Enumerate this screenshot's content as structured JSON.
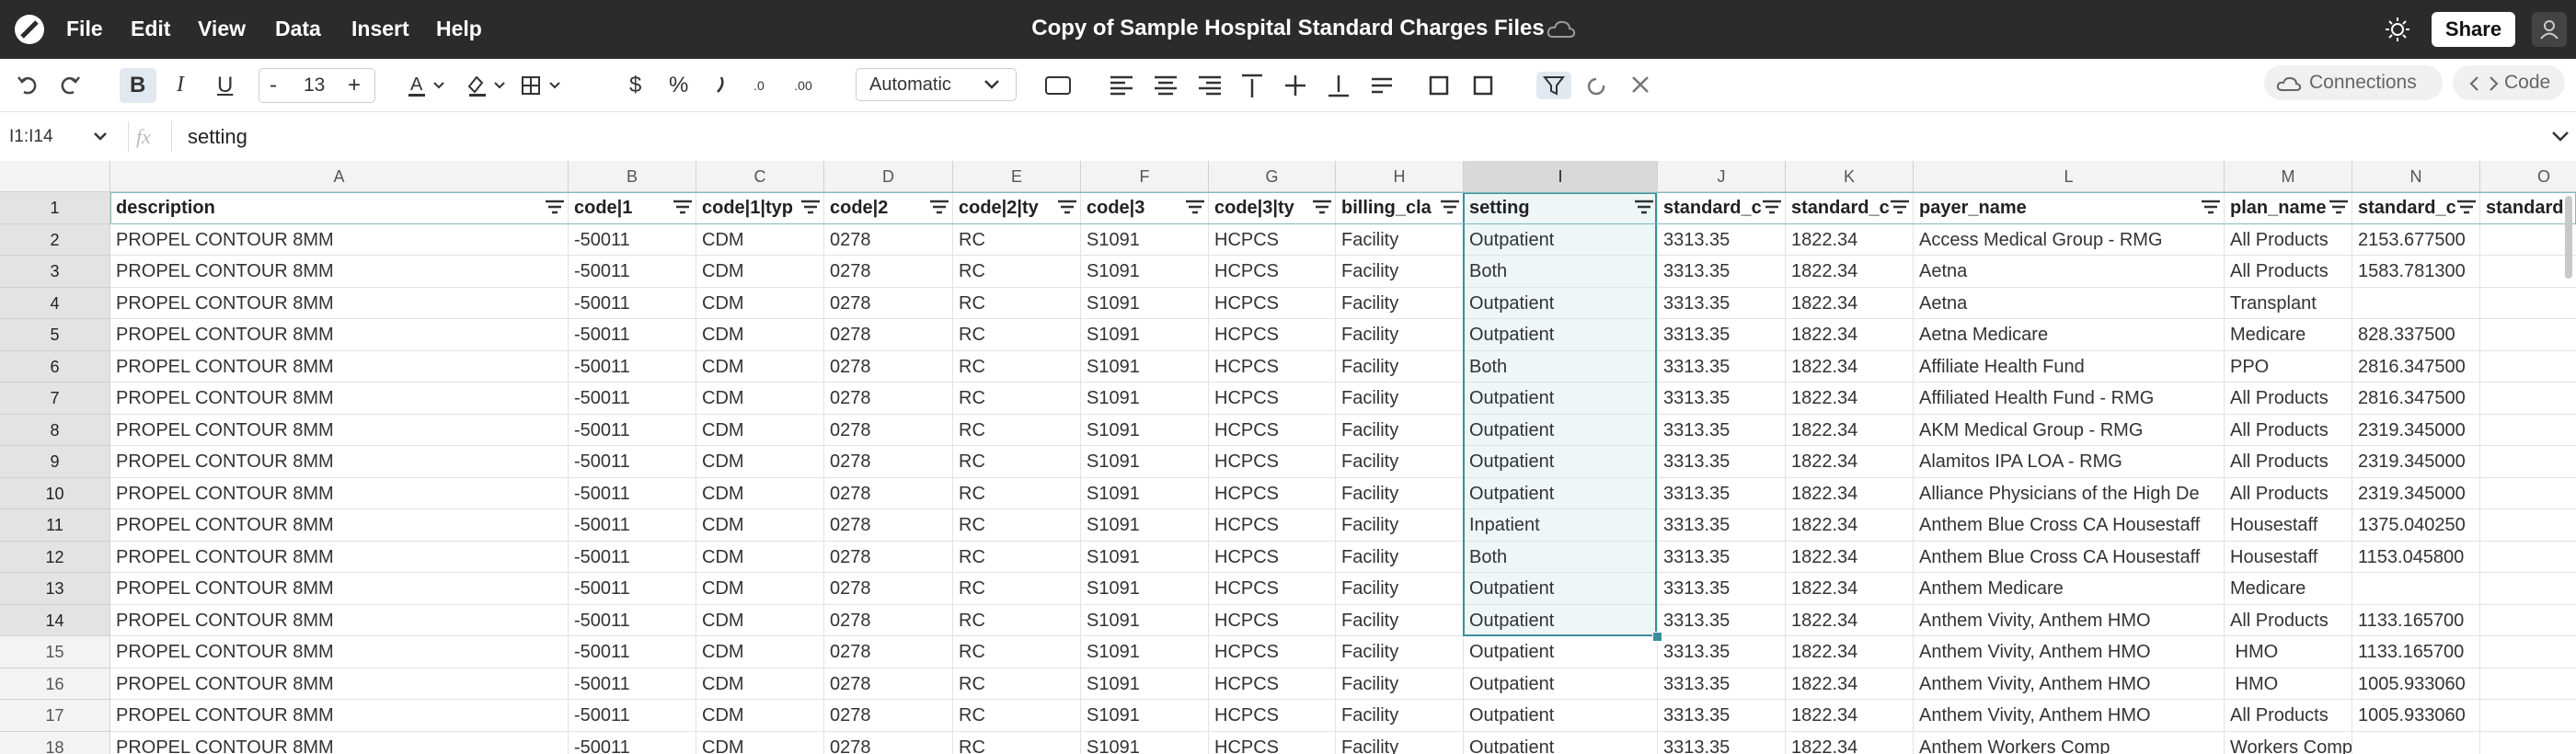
{
  "menu": [
    "File",
    "Edit",
    "View",
    "Data",
    "Insert",
    "Help"
  ],
  "title": "Copy of Sample Hospital Standard Charges Files",
  "share": "Share",
  "toolbar": {
    "bold": "B",
    "italic": "I",
    "underline": "U",
    "minus": "-",
    "font_size": "13",
    "plus": "+",
    "currency": "$",
    "percent": "%",
    "format": "Automatic",
    "connections": "Connections",
    "code": "Code"
  },
  "formula_bar": {
    "cell_ref": "I1:I14",
    "fx": "fx",
    "formula": "setting"
  },
  "columns": [
    "A",
    "B",
    "C",
    "D",
    "E",
    "F",
    "G",
    "H",
    "I",
    "J",
    "K",
    "L",
    "M",
    "N",
    "O"
  ],
  "row_numbers": [
    "1",
    "2",
    "3",
    "4",
    "5",
    "6",
    "7",
    "8",
    "9",
    "10",
    "11",
    "12",
    "13",
    "14",
    "15",
    "16",
    "17",
    "18"
  ],
  "rows": [
    [
      "description",
      "code|1",
      "code|1|typ",
      "code|2",
      "code|2|ty",
      "code|3",
      "code|3|ty",
      "billing_cla",
      "setting",
      "standard_c",
      "standard_c",
      "payer_name",
      "plan_name",
      "standard_c",
      "standard"
    ],
    [
      "PROPEL CONTOUR 8MM",
      "-50011",
      "CDM",
      "0278",
      "RC",
      "S1091",
      "HCPCS",
      "Facility",
      "Outpatient",
      "3313.35",
      "1822.34",
      "Access Medical Group - RMG",
      "All Products",
      "2153.677500",
      null
    ],
    [
      "PROPEL CONTOUR 8MM",
      "-50011",
      "CDM",
      "0278",
      "RC",
      "S1091",
      "HCPCS",
      "Facility",
      "Both",
      "3313.35",
      "1822.34",
      "Aetna",
      "All Products",
      "1583.781300",
      null
    ],
    [
      "PROPEL CONTOUR 8MM",
      "-50011",
      "CDM",
      "0278",
      "RC",
      "S1091",
      "HCPCS",
      "Facility",
      "Outpatient",
      "3313.35",
      "1822.34",
      "Aetna",
      "Transplant",
      null,
      null
    ],
    [
      "PROPEL CONTOUR 8MM",
      "-50011",
      "CDM",
      "0278",
      "RC",
      "S1091",
      "HCPCS",
      "Facility",
      "Outpatient",
      "3313.35",
      "1822.34",
      "Aetna Medicare",
      "Medicare",
      "828.337500",
      null
    ],
    [
      "PROPEL CONTOUR 8MM",
      "-50011",
      "CDM",
      "0278",
      "RC",
      "S1091",
      "HCPCS",
      "Facility",
      "Both",
      "3313.35",
      "1822.34",
      "Affiliate Health Fund",
      "PPO",
      "2816.347500",
      null
    ],
    [
      "PROPEL CONTOUR 8MM",
      "-50011",
      "CDM",
      "0278",
      "RC",
      "S1091",
      "HCPCS",
      "Facility",
      "Outpatient",
      "3313.35",
      "1822.34",
      "Affiliated Health Fund - RMG",
      "All Products",
      "2816.347500",
      null
    ],
    [
      "PROPEL CONTOUR 8MM",
      "-50011",
      "CDM",
      "0278",
      "RC",
      "S1091",
      "HCPCS",
      "Facility",
      "Outpatient",
      "3313.35",
      "1822.34",
      "AKM Medical Group - RMG",
      "All Products",
      "2319.345000",
      null
    ],
    [
      "PROPEL CONTOUR 8MM",
      "-50011",
      "CDM",
      "0278",
      "RC",
      "S1091",
      "HCPCS",
      "Facility",
      "Outpatient",
      "3313.35",
      "1822.34",
      "Alamitos IPA LOA - RMG",
      "All Products",
      "2319.345000",
      null
    ],
    [
      "PROPEL CONTOUR 8MM",
      "-50011",
      "CDM",
      "0278",
      "RC",
      "S1091",
      "HCPCS",
      "Facility",
      "Outpatient",
      "3313.35",
      "1822.34",
      "Alliance Physicians of the High De",
      "All Products",
      "2319.345000",
      null
    ],
    [
      "PROPEL CONTOUR 8MM",
      "-50011",
      "CDM",
      "0278",
      "RC",
      "S1091",
      "HCPCS",
      "Facility",
      "Inpatient",
      "3313.35",
      "1822.34",
      "Anthem Blue Cross CA Housestaff",
      "Housestaff",
      "1375.040250",
      null
    ],
    [
      "PROPEL CONTOUR 8MM",
      "-50011",
      "CDM",
      "0278",
      "RC",
      "S1091",
      "HCPCS",
      "Facility",
      "Both",
      "3313.35",
      "1822.34",
      "Anthem Blue Cross CA Housestaff",
      "Housestaff",
      "1153.045800",
      null
    ],
    [
      "PROPEL CONTOUR 8MM",
      "-50011",
      "CDM",
      "0278",
      "RC",
      "S1091",
      "HCPCS",
      "Facility",
      "Outpatient",
      "3313.35",
      "1822.34",
      "Anthem Medicare",
      "Medicare",
      null,
      null
    ],
    [
      "PROPEL CONTOUR 8MM",
      "-50011",
      "CDM",
      "0278",
      "RC",
      "S1091",
      "HCPCS",
      "Facility",
      "Outpatient",
      "3313.35",
      "1822.34",
      "Anthem Vivity, Anthem HMO",
      "All Products",
      "1133.165700",
      null
    ],
    [
      "PROPEL CONTOUR 8MM",
      "-50011",
      "CDM",
      "0278",
      "RC",
      "S1091",
      "HCPCS",
      "Facility",
      "Outpatient",
      "3313.35",
      "1822.34",
      "Anthem Vivity, Anthem HMO",
      " HMO",
      "1133.165700",
      null
    ],
    [
      "PROPEL CONTOUR 8MM",
      "-50011",
      "CDM",
      "0278",
      "RC",
      "S1091",
      "HCPCS",
      "Facility",
      "Outpatient",
      "3313.35",
      "1822.34",
      "Anthem Vivity, Anthem HMO",
      " HMO",
      "1005.933060",
      null
    ],
    [
      "PROPEL CONTOUR 8MM",
      "-50011",
      "CDM",
      "0278",
      "RC",
      "S1091",
      "HCPCS",
      "Facility",
      "Outpatient",
      "3313.35",
      "1822.34",
      "Anthem Vivity, Anthem HMO",
      "All Products",
      "1005.933060",
      null
    ],
    [
      "PROPEL CONTOUR 8MM",
      "-50011",
      "CDM",
      "0278",
      "RC",
      "S1091",
      "HCPCS",
      "Facility",
      "Outpatient",
      "3313.35",
      "1822.34",
      "Anthem Workers Comp",
      "Workers Comp",
      null,
      null
    ]
  ]
}
